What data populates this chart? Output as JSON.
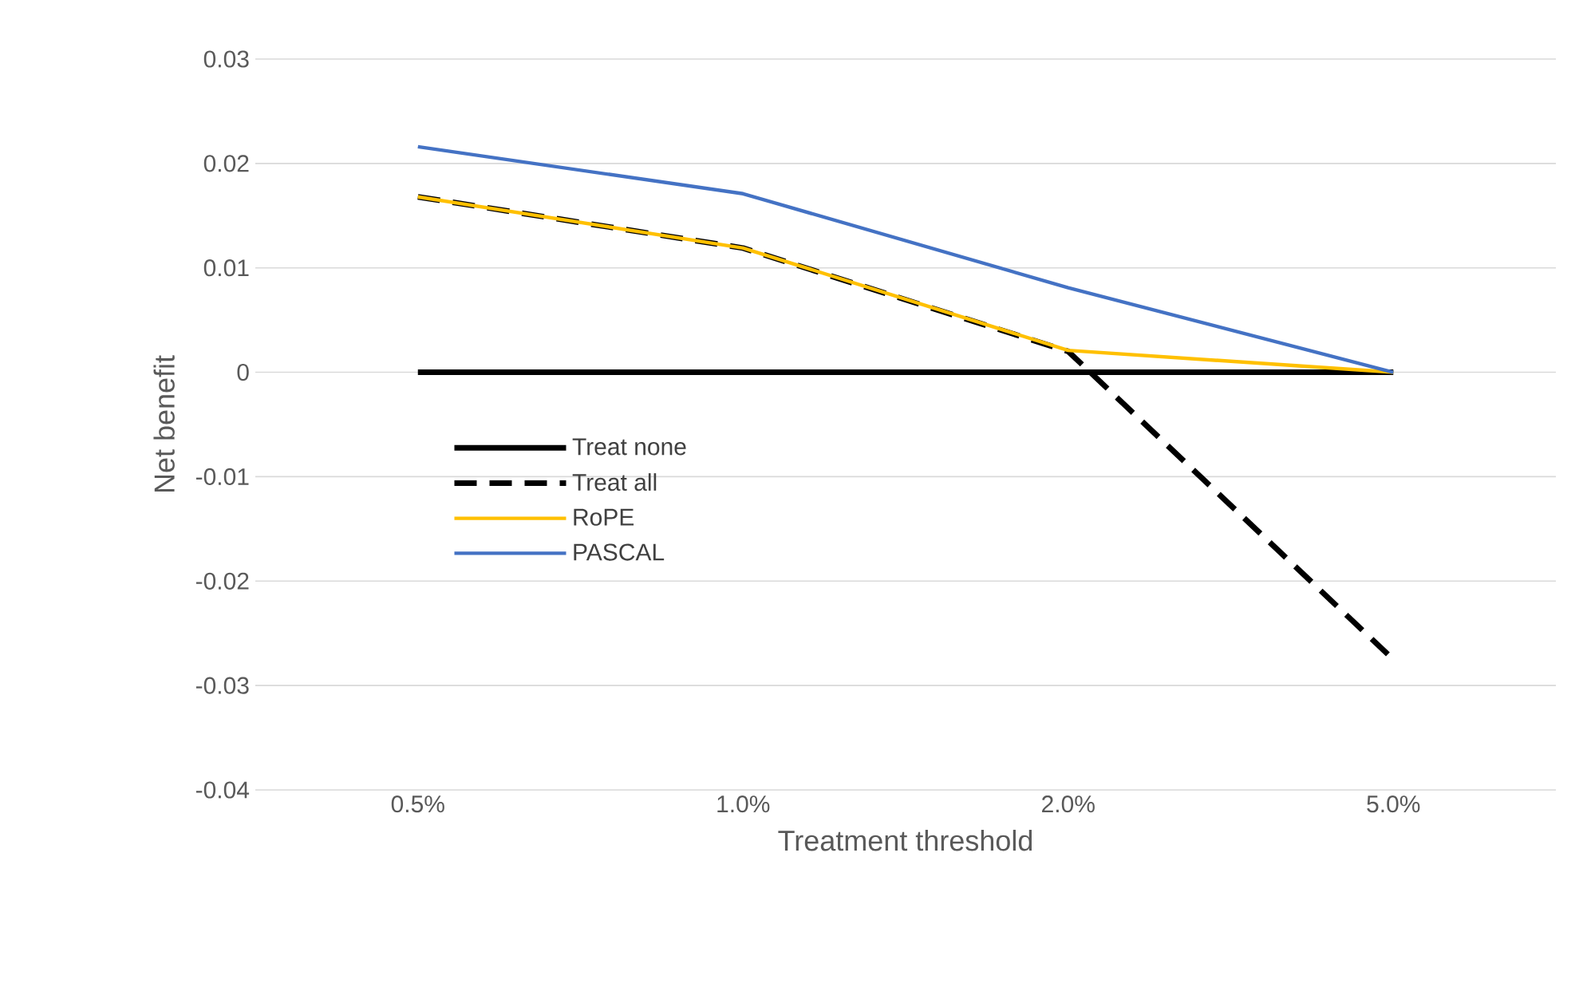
{
  "chart_data": {
    "type": "line",
    "xlabel": "Treatment threshold",
    "ylabel": "Net benefit",
    "categories": [
      "0.5%",
      "1.0%",
      "2.0%",
      "5.0%"
    ],
    "ylim": [
      -0.04,
      0.03
    ],
    "yticks": [
      -0.04,
      -0.03,
      -0.02,
      -0.01,
      0,
      0.01,
      0.02,
      0.03
    ],
    "grid": "y",
    "legend": "left",
    "marker": "none",
    "line_style": "solid",
    "series": [
      {
        "name": "Treat none",
        "color": "#000000",
        "values": [
          0,
          0,
          0,
          0
        ]
      },
      {
        "name": "Treat all",
        "color": "#000000",
        "line_style": "dashed",
        "values": [
          0.0168,
          0.0119,
          0.002,
          -0.0275
        ]
      },
      {
        "name": "RoPE",
        "color": "#ffc000",
        "values": [
          0.0168,
          0.0119,
          0.0021,
          0
        ]
      },
      {
        "name": "PASCAL",
        "color": "#4472c4",
        "values": [
          0.0216,
          0.0171,
          0.0081,
          0
        ]
      }
    ]
  }
}
